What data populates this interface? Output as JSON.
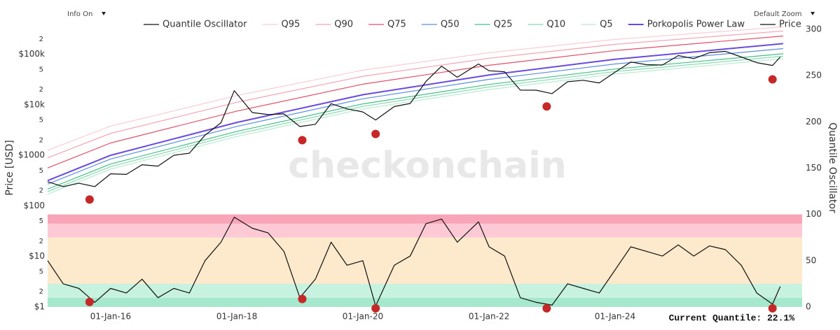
{
  "chart_data": {
    "type": "line",
    "controls": {
      "info": "Info On",
      "zoom": "Default Zoom"
    },
    "watermark": "checkonchain",
    "ylabel": "Price [USD]",
    "y2label": "Quantile Oscillator",
    "annotation": "Current Quantile: 22.1%",
    "ylog": true,
    "ylim": [
      1,
      310000
    ],
    "yticks": [
      {
        "value": 1,
        "label": "$1"
      },
      2,
      5,
      {
        "value": 10,
        "label": "$10"
      },
      {
        "value": 20,
        "label": "2"
      },
      {
        "value": 50,
        "label": "5"
      },
      {
        "value": 100,
        "label": "$100"
      },
      {
        "value": 200,
        "label": "2"
      },
      {
        "value": 500,
        "label": "5"
      },
      {
        "value": 1000,
        "label": "$1000"
      },
      {
        "value": 2000,
        "label": "2"
      },
      {
        "value": 5000,
        "label": "5"
      },
      {
        "value": 10000,
        "label": "$10k"
      },
      {
        "value": 20000,
        "label": "2"
      },
      {
        "value": 50000,
        "label": "5"
      },
      {
        "value": 100000,
        "label": "$100k"
      },
      {
        "value": 200000,
        "label": "2"
      }
    ],
    "y2lim": [
      0,
      300
    ],
    "y2ticks": [
      0,
      50,
      100,
      150,
      200,
      250,
      300
    ],
    "xlim": [
      "2015-01-01",
      "2027-01-01"
    ],
    "xticks": [
      {
        "value": "2016-01-01",
        "label": "01-Jan-16"
      },
      {
        "value": "2018-01-01",
        "label": "01-Jan-18"
      },
      {
        "value": "2020-01-01",
        "label": "01-Jan-20"
      },
      {
        "value": "2022-01-01",
        "label": "01-Jan-22"
      },
      {
        "value": "2024-01-01",
        "label": "01-Jan-24"
      }
    ],
    "bands": [
      {
        "range": [
          0,
          10
        ],
        "color": "#a6e8cd"
      },
      {
        "range": [
          10,
          25
        ],
        "color": "#c6f2df"
      },
      {
        "range": [
          25,
          75
        ],
        "color": "#fde9cc"
      },
      {
        "range": [
          75,
          90
        ],
        "color": "#fcc9d5"
      },
      {
        "range": [
          90,
          100
        ],
        "color": "#f8a5b7"
      }
    ],
    "signals": {
      "color": "#c62828",
      "x": [
        "2015-09-01",
        "2019-01-15",
        "2020-03-15",
        "2022-12-01",
        "2026-07-01"
      ]
    },
    "series": [
      {
        "name": "Quantile Oscillator",
        "color": "#111111",
        "axis": "y2",
        "x": [
          "2015-01-01",
          "2015-04-01",
          "2015-07-01",
          "2015-10-01",
          "2016-01-01",
          "2016-04-01",
          "2016-07-01",
          "2016-10-01",
          "2017-01-01",
          "2017-04-01",
          "2017-07-01",
          "2017-10-01",
          "2017-12-17",
          "2018-04-01",
          "2018-07-01",
          "2018-10-01",
          "2019-01-01",
          "2019-04-01",
          "2019-07-01",
          "2019-10-01",
          "2020-01-01",
          "2020-03-15",
          "2020-07-01",
          "2020-10-01",
          "2021-01-01",
          "2021-04-01",
          "2021-07-01",
          "2021-11-01",
          "2022-01-01",
          "2022-04-01",
          "2022-07-01",
          "2022-10-01",
          "2023-01-01",
          "2023-04-01",
          "2023-07-01",
          "2023-10-01",
          "2024-01-01",
          "2024-04-01",
          "2024-07-01",
          "2024-10-01",
          "2025-01-01",
          "2025-04-01",
          "2025-07-01",
          "2025-10-01",
          "2026-01-01",
          "2026-04-01",
          "2026-07-01",
          "2026-08-15"
        ],
        "values": [
          50,
          25,
          20,
          5,
          20,
          15,
          30,
          10,
          20,
          15,
          50,
          70,
          97,
          85,
          80,
          60,
          10,
          30,
          70,
          45,
          50,
          1,
          45,
          55,
          90,
          95,
          70,
          92,
          65,
          55,
          10,
          5,
          2,
          25,
          20,
          15,
          40,
          65,
          60,
          55,
          67,
          55,
          66,
          62,
          45,
          15,
          3,
          22.1
        ]
      },
      {
        "name": "Q95",
        "color": "#f8cdd6",
        "x": [
          "2015-01-01",
          "2016-01-01",
          "2018-01-01",
          "2020-01-01",
          "2022-01-01",
          "2024-01-01",
          "2026-09-01"
        ],
        "values": [
          1260,
          3780,
          15200,
          48300,
          107000,
          196000,
          347000
        ]
      },
      {
        "name": "Q90",
        "color": "#f3a3b1",
        "x": [
          "2015-01-01",
          "2016-01-01",
          "2018-01-01",
          "2020-01-01",
          "2022-01-01",
          "2024-01-01",
          "2026-09-01"
        ],
        "values": [
          891,
          2710,
          11200,
          36600,
          83200,
          157000,
          288000
        ]
      },
      {
        "name": "Q75",
        "color": "#e0506a",
        "x": [
          "2015-01-01",
          "2016-01-01",
          "2018-01-01",
          "2020-01-01",
          "2022-01-01",
          "2024-01-01",
          "2026-09-01"
        ],
        "values": [
          562,
          1750,
          7480,
          25500,
          60300,
          118000,
          229000
        ]
      },
      {
        "name": "Q50",
        "color": "#5b8fe0",
        "x": [
          "2015-01-01",
          "2016-01-01",
          "2018-01-01",
          "2020-01-01",
          "2022-01-01",
          "2024-01-01",
          "2026-09-01"
        ],
        "values": [
          269,
          845,
          3730,
          13100,
          31800,
          64100,
          129000
        ]
      },
      {
        "name": "Q25",
        "color": "#43bf86",
        "x": [
          "2015-01-01",
          "2016-01-01",
          "2018-01-01",
          "2020-01-01",
          "2022-01-01",
          "2024-01-01",
          "2026-09-01"
        ],
        "values": [
          214,
          671,
          2970,
          10400,
          25200,
          50900,
          102000
        ]
      },
      {
        "name": "Q10",
        "color": "#86d9b0",
        "x": [
          "2015-01-01",
          "2016-01-01",
          "2018-01-01",
          "2020-01-01",
          "2022-01-01",
          "2024-01-01",
          "2026-09-01"
        ],
        "values": [
          191,
          598,
          2640,
          9270,
          22500,
          45400,
          91200
        ]
      },
      {
        "name": "Q5",
        "color": "#b8ebd3",
        "x": [
          "2015-01-01",
          "2016-01-01",
          "2018-01-01",
          "2020-01-01",
          "2022-01-01",
          "2024-01-01",
          "2026-09-01"
        ],
        "values": [
          170,
          533,
          2360,
          8260,
          20000,
          40500,
          81300
        ]
      },
      {
        "name": "Porkopolis Power Law",
        "color": "#6a4be0",
        "x": [
          "2015-01-01",
          "2016-01-01",
          "2018-01-01",
          "2020-01-01",
          "2022-01-01",
          "2024-01-01",
          "2026-09-01"
        ],
        "values": [
          316,
          1000,
          4470,
          15800,
          38900,
          79400,
          162000
        ]
      },
      {
        "name": "Price",
        "color": "#111111",
        "x": [
          "2015-01-01",
          "2015-04-01",
          "2015-07-01",
          "2015-10-01",
          "2016-01-01",
          "2016-04-01",
          "2016-07-01",
          "2016-10-01",
          "2017-01-01",
          "2017-04-01",
          "2017-07-01",
          "2017-10-01",
          "2017-12-17",
          "2018-04-01",
          "2018-07-01",
          "2018-10-01",
          "2019-01-01",
          "2019-04-01",
          "2019-07-01",
          "2019-10-01",
          "2020-01-01",
          "2020-03-15",
          "2020-07-01",
          "2020-10-01",
          "2021-01-01",
          "2021-04-01",
          "2021-07-01",
          "2021-11-01",
          "2022-01-01",
          "2022-04-01",
          "2022-07-01",
          "2022-10-01",
          "2023-01-01",
          "2023-04-01",
          "2023-07-01",
          "2023-10-01",
          "2024-01-01",
          "2024-04-01",
          "2024-07-01",
          "2024-10-01",
          "2025-01-01",
          "2025-04-01",
          "2025-07-01",
          "2025-10-01",
          "2026-01-01",
          "2026-04-01",
          "2026-07-01",
          "2026-08-15"
        ],
        "values": [
          300,
          240,
          280,
          240,
          430,
          420,
          650,
          610,
          1000,
          1100,
          2500,
          4400,
          19000,
          7000,
          6400,
          6600,
          3700,
          4100,
          10500,
          8300,
          7200,
          5000,
          9200,
          10600,
          29000,
          58000,
          35000,
          64000,
          47000,
          45000,
          19500,
          19400,
          16600,
          28500,
          30500,
          27000,
          44000,
          70000,
          62000,
          61000,
          94000,
          82000,
          107000,
          114000,
          88000,
          68000,
          60000,
          88000
        ]
      }
    ]
  }
}
